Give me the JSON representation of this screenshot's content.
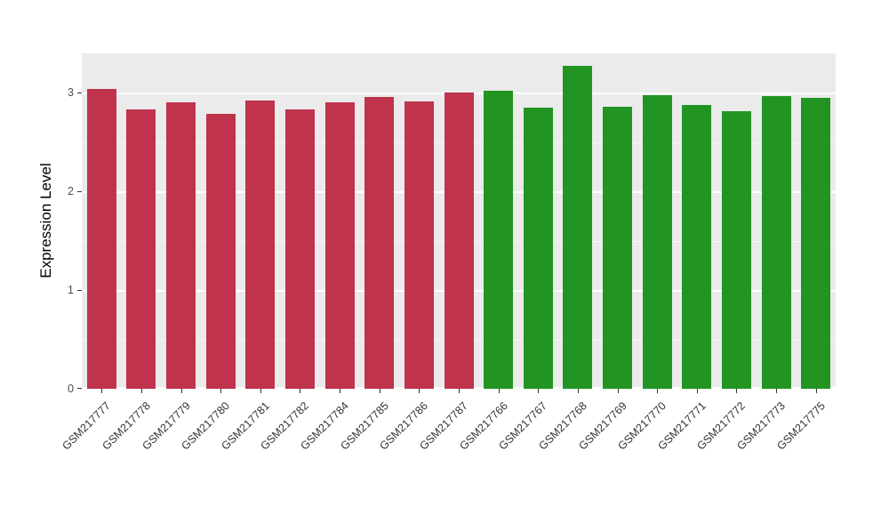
{
  "chart_data": {
    "type": "bar",
    "title": "",
    "xlabel": "",
    "ylabel": "Expression Level",
    "ylim": [
      0,
      3.4
    ],
    "yticks": [
      0,
      1,
      2,
      3
    ],
    "yticks_minor": [
      0.5,
      1.5,
      2.5
    ],
    "grid": "on",
    "legend": "none",
    "panel_background": "#EBEBEB",
    "gridline_color": "#FFFFFF",
    "categories": [
      "GSM217777",
      "GSM217778",
      "GSM217779",
      "GSM217780",
      "GSM217781",
      "GSM217782",
      "GSM217784",
      "GSM217785",
      "GSM217786",
      "GSM217787",
      "GSM217766",
      "GSM217767",
      "GSM217768",
      "GSM217769",
      "GSM217770",
      "GSM217771",
      "GSM217772",
      "GSM217773",
      "GSM217775"
    ],
    "values": [
      3.04,
      2.83,
      2.9,
      2.79,
      2.92,
      2.83,
      2.9,
      2.96,
      2.91,
      3.0,
      3.02,
      2.85,
      3.27,
      2.86,
      2.98,
      2.88,
      2.81,
      2.97,
      2.95
    ],
    "bar_groups": [
      "crimson",
      "crimson",
      "crimson",
      "crimson",
      "crimson",
      "crimson",
      "crimson",
      "crimson",
      "crimson",
      "crimson",
      "green",
      "green",
      "green",
      "green",
      "green",
      "green",
      "green",
      "green",
      "green"
    ],
    "group_colors": {
      "crimson": "#C0334D",
      "green": "#229422"
    }
  }
}
